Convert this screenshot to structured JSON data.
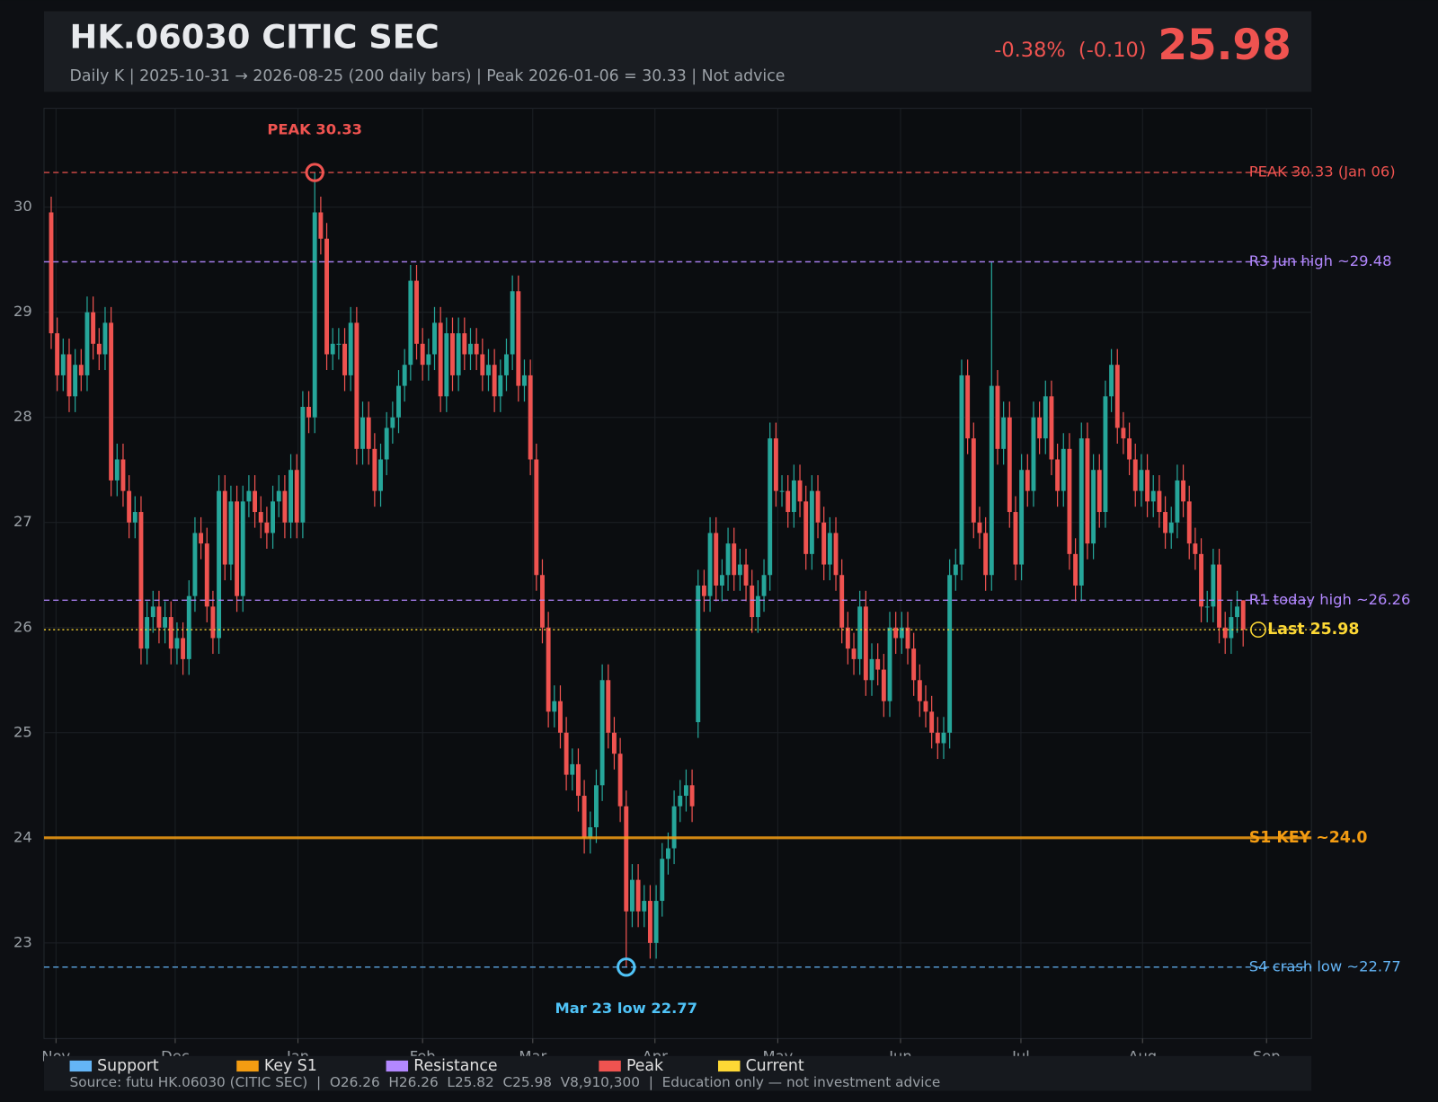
{
  "header": {
    "title": "HK.06030  CITIC SEC",
    "subtitle": "Daily K  |  2025-10-31 → 2026-08-25 (200 daily bars)  |  Peak 2026-01-06 = 30.33  |  Not advice",
    "change": "-0.38%  (-0.10)",
    "price": "25.98"
  },
  "footer": "Source: futu HK.06030 (CITIC SEC)  |  O26.26  H26.26  L25.82  C25.98  V8,910,300  |  Education only — not investment advice",
  "chart_data": {
    "type": "candlestick",
    "xlim": [
      -1.2,
      210.4
    ],
    "xticks": [
      {
        "value": 0.8,
        "label": "Nov"
      },
      {
        "value": 20.7,
        "label": "Dec"
      },
      {
        "value": 41.2,
        "label": "Jan"
      },
      {
        "value": 62,
        "label": "Feb"
      },
      {
        "value": 80.4,
        "label": "Mar"
      },
      {
        "value": 100.8,
        "label": "Apr"
      },
      {
        "value": 121.3,
        "label": "May"
      },
      {
        "value": 141.8,
        "label": "Jun"
      },
      {
        "value": 161.9,
        "label": "Jul"
      },
      {
        "value": 182.2,
        "label": "Aug"
      },
      {
        "value": 202.9,
        "label": "Sep"
      }
    ],
    "ylim": [
      22.09,
      30.94
    ],
    "yticks": [
      23,
      24,
      25,
      26,
      27,
      28,
      29,
      30
    ],
    "grid": true,
    "up_color": "#26a69a",
    "down_color": "#ef5350",
    "open": [
      29.95,
      28.8,
      28.4,
      28.6,
      28.2,
      28.5,
      28.4,
      29.0,
      28.7,
      28.6,
      28.9,
      27.4,
      27.6,
      27.3,
      27.0,
      27.1,
      25.8,
      26.1,
      26.2,
      26.0,
      26.1,
      25.8,
      25.9,
      25.7,
      26.3,
      26.9,
      26.8,
      26.2,
      25.9,
      27.3,
      26.6,
      27.2,
      26.3,
      27.2,
      27.3,
      27.1,
      27.0,
      26.9,
      27.2,
      27.3,
      27.0,
      27.5,
      27.0,
      28.1,
      28.0,
      29.95,
      29.7,
      28.6,
      28.7,
      28.7,
      28.4,
      28.9,
      27.7,
      28.0,
      27.7,
      27.3,
      27.6,
      27.9,
      28.0,
      28.3,
      28.5,
      29.3,
      28.7,
      28.5,
      28.6,
      28.9,
      28.2,
      28.8,
      28.4,
      28.8,
      28.6,
      28.7,
      28.6,
      28.4,
      28.5,
      28.2,
      28.4,
      28.6,
      29.2,
      28.3,
      28.4,
      27.6,
      26.5,
      26.0,
      25.2,
      25.3,
      25.0,
      24.6,
      24.7,
      24.4,
      24.0,
      24.1,
      24.5,
      25.5,
      25.0,
      24.8,
      24.3,
      23.3,
      23.6,
      23.3,
      23.4,
      23.0,
      23.4,
      23.8,
      23.9,
      24.3,
      24.4,
      24.5,
      25.1,
      26.4,
      26.3,
      26.9,
      26.4,
      26.5,
      26.8,
      26.5,
      26.6,
      26.4,
      26.1,
      26.3,
      26.5,
      27.8,
      27.3,
      27.3,
      27.1,
      27.4,
      27.2,
      26.7,
      27.3,
      27.0,
      26.6,
      26.9,
      26.5,
      26.0,
      25.8,
      25.7,
      26.2,
      25.5,
      25.7,
      25.6,
      25.3,
      26.0,
      25.9,
      26.0,
      25.8,
      25.5,
      25.3,
      25.2,
      25.0,
      24.9,
      25.0,
      26.5,
      26.6,
      28.4,
      27.8,
      27.0,
      26.9,
      26.5,
      28.3,
      27.7,
      28.0,
      27.1,
      26.6,
      27.5,
      27.3,
      28.0,
      27.8,
      28.2,
      27.6,
      27.3,
      27.7,
      26.7,
      26.4,
      27.8,
      26.8,
      27.5,
      27.1,
      28.2,
      28.5,
      27.9,
      27.8,
      27.6,
      27.3,
      27.5,
      27.2,
      27.3,
      27.1,
      26.9,
      27.0,
      27.4,
      27.2,
      26.8,
      26.7,
      26.2,
      26.2,
      26.6,
      26.0,
      25.9,
      26.1,
      26.26
    ],
    "high": [
      30.1,
      28.95,
      28.75,
      28.75,
      28.65,
      28.65,
      29.15,
      29.15,
      28.85,
      29.05,
      29.05,
      27.75,
      27.75,
      27.45,
      27.25,
      27.25,
      26.25,
      26.35,
      26.35,
      26.25,
      26.25,
      26.05,
      26.05,
      26.45,
      27.05,
      27.05,
      26.95,
      26.35,
      27.45,
      27.45,
      27.35,
      27.35,
      27.35,
      27.45,
      27.45,
      27.25,
      27.15,
      27.35,
      27.45,
      27.45,
      27.65,
      27.65,
      28.25,
      28.25,
      30.33,
      30.1,
      29.85,
      28.85,
      28.85,
      28.85,
      29.05,
      29.05,
      28.15,
      28.15,
      27.85,
      27.75,
      28.05,
      28.15,
      28.45,
      28.65,
      29.45,
      29.45,
      28.85,
      28.75,
      29.05,
      29.05,
      28.95,
      28.95,
      28.95,
      28.95,
      28.85,
      28.85,
      28.75,
      28.65,
      28.65,
      28.55,
      28.75,
      29.35,
      29.35,
      28.55,
      28.55,
      27.75,
      26.65,
      26.15,
      25.45,
      25.45,
      25.15,
      24.85,
      24.85,
      24.55,
      24.25,
      24.65,
      25.65,
      25.65,
      25.15,
      24.95,
      24.45,
      23.75,
      23.75,
      23.55,
      23.55,
      23.55,
      23.95,
      24.05,
      24.45,
      24.55,
      24.65,
      24.65,
      26.55,
      26.55,
      27.05,
      27.05,
      26.65,
      26.95,
      26.95,
      26.75,
      26.75,
      26.55,
      26.45,
      26.65,
      27.95,
      27.95,
      27.45,
      27.45,
      27.55,
      27.55,
      27.35,
      27.45,
      27.45,
      27.15,
      27.05,
      27.05,
      26.65,
      26.15,
      25.95,
      26.35,
      26.35,
      25.85,
      25.85,
      25.75,
      26.15,
      26.15,
      26.15,
      26.15,
      25.95,
      25.65,
      25.45,
      25.35,
      25.15,
      25.15,
      26.65,
      26.75,
      28.55,
      28.55,
      27.95,
      27.15,
      27.05,
      29.48,
      28.45,
      28.15,
      28.15,
      27.25,
      27.65,
      27.65,
      28.15,
      28.15,
      28.35,
      28.35,
      27.75,
      27.85,
      27.85,
      26.85,
      27.95,
      27.95,
      27.65,
      27.65,
      28.35,
      28.65,
      28.65,
      28.05,
      27.95,
      27.75,
      27.65,
      27.65,
      27.45,
      27.45,
      27.25,
      27.15,
      27.55,
      27.55,
      27.35,
      26.95,
      26.85,
      26.35,
      26.75,
      26.75,
      26.15,
      26.25,
      26.35,
      26.26
    ],
    "low": [
      28.65,
      28.25,
      28.25,
      28.05,
      28.05,
      28.25,
      28.25,
      28.55,
      28.45,
      28.45,
      27.25,
      27.25,
      27.15,
      26.85,
      26.85,
      25.65,
      25.65,
      25.95,
      25.85,
      25.85,
      25.65,
      25.65,
      25.55,
      25.55,
      26.15,
      26.65,
      26.05,
      25.75,
      25.75,
      26.45,
      26.45,
      26.15,
      26.15,
      27.05,
      26.95,
      26.85,
      26.75,
      26.75,
      27.05,
      26.85,
      26.85,
      26.85,
      26.85,
      27.85,
      27.85,
      29.55,
      28.45,
      28.45,
      28.55,
      28.25,
      28.25,
      27.55,
      27.55,
      27.55,
      27.15,
      27.15,
      27.45,
      27.75,
      27.85,
      28.15,
      28.35,
      28.55,
      28.35,
      28.35,
      28.45,
      28.05,
      28.05,
      28.25,
      28.25,
      28.45,
      28.45,
      28.45,
      28.25,
      28.25,
      28.05,
      28.05,
      28.25,
      28.45,
      28.15,
      28.15,
      27.45,
      26.35,
      25.85,
      25.05,
      25.05,
      24.85,
      24.45,
      24.45,
      24.25,
      23.85,
      23.85,
      23.95,
      24.35,
      24.85,
      24.65,
      24.15,
      22.77,
      23.15,
      23.15,
      23.15,
      22.85,
      22.85,
      23.25,
      23.65,
      23.75,
      24.15,
      24.25,
      24.15,
      24.95,
      26.15,
      26.15,
      26.25,
      26.25,
      26.35,
      26.35,
      26.35,
      26.25,
      25.95,
      25.95,
      26.15,
      26.35,
      27.15,
      27.15,
      26.95,
      26.95,
      27.05,
      26.55,
      26.55,
      26.85,
      26.45,
      26.45,
      26.35,
      25.85,
      25.65,
      25.55,
      25.55,
      25.35,
      25.35,
      25.45,
      25.15,
      25.15,
      25.75,
      25.75,
      25.65,
      25.35,
      25.15,
      25.05,
      24.85,
      24.75,
      24.75,
      24.85,
      26.35,
      26.45,
      27.65,
      26.85,
      26.75,
      26.35,
      26.35,
      27.55,
      27.55,
      26.95,
      26.45,
      26.45,
      27.15,
      27.15,
      27.65,
      27.65,
      27.45,
      27.15,
      27.15,
      26.55,
      26.25,
      26.25,
      26.65,
      26.65,
      26.95,
      26.95,
      28.05,
      27.75,
      27.65,
      27.45,
      27.15,
      27.15,
      27.05,
      27.05,
      26.95,
      26.75,
      26.75,
      26.85,
      27.05,
      26.65,
      26.55,
      26.05,
      26.05,
      26.05,
      25.85,
      25.75,
      25.75,
      25.95,
      25.82
    ],
    "close": [
      28.8,
      28.4,
      28.6,
      28.2,
      28.5,
      28.4,
      29.0,
      28.7,
      28.6,
      28.9,
      27.4,
      27.6,
      27.3,
      27.0,
      27.1,
      25.8,
      26.1,
      26.2,
      26.0,
      26.1,
      25.8,
      25.9,
      25.7,
      26.3,
      26.9,
      26.8,
      26.2,
      25.9,
      27.3,
      26.6,
      27.2,
      26.3,
      27.2,
      27.3,
      27.1,
      27.0,
      26.9,
      27.2,
      27.3,
      27.0,
      27.5,
      27.0,
      28.1,
      28.0,
      29.95,
      29.7,
      28.6,
      28.7,
      28.7,
      28.4,
      28.9,
      27.7,
      28.0,
      27.7,
      27.3,
      27.6,
      27.9,
      28.0,
      28.3,
      28.5,
      29.3,
      28.7,
      28.5,
      28.6,
      28.9,
      28.2,
      28.8,
      28.4,
      28.8,
      28.6,
      28.7,
      28.6,
      28.4,
      28.5,
      28.2,
      28.4,
      28.6,
      29.2,
      28.3,
      28.4,
      27.6,
      26.5,
      26.0,
      25.2,
      25.3,
      25.0,
      24.6,
      24.7,
      24.4,
      24.0,
      24.1,
      24.5,
      25.5,
      25.0,
      24.8,
      24.3,
      23.3,
      23.6,
      23.3,
      23.4,
      23.0,
      23.4,
      23.8,
      23.9,
      24.3,
      24.4,
      24.5,
      24.3,
      26.4,
      26.3,
      26.9,
      26.4,
      26.5,
      26.8,
      26.5,
      26.6,
      26.4,
      26.1,
      26.3,
      26.5,
      27.8,
      27.3,
      27.3,
      27.1,
      27.4,
      27.2,
      26.7,
      27.3,
      27.0,
      26.6,
      26.9,
      26.5,
      26.0,
      25.8,
      25.7,
      26.2,
      25.5,
      25.7,
      25.6,
      25.3,
      26.0,
      25.9,
      26.0,
      25.8,
      25.5,
      25.3,
      25.2,
      25.0,
      24.9,
      25.0,
      26.5,
      26.6,
      28.4,
      27.8,
      27.0,
      26.9,
      26.5,
      28.3,
      27.7,
      28.0,
      27.1,
      26.6,
      27.5,
      27.3,
      28.0,
      27.8,
      28.2,
      27.6,
      27.3,
      27.7,
      26.7,
      26.4,
      27.8,
      26.8,
      27.5,
      27.1,
      28.2,
      28.5,
      27.9,
      27.8,
      27.6,
      27.3,
      27.5,
      27.2,
      27.3,
      27.1,
      26.9,
      27.0,
      27.4,
      27.2,
      26.8,
      26.7,
      26.2,
      26.2,
      26.6,
      26.0,
      25.9,
      26.1,
      26.2,
      25.98
    ],
    "levels": [
      {
        "value": 30.33,
        "label": "PEAK 30.33 (Jan 06)",
        "color": "#ef5350",
        "style": "dashed"
      },
      {
        "value": 29.48,
        "label": "R3 Jun high ~29.48",
        "color": "#b388ff",
        "style": "dashed"
      },
      {
        "value": 26.26,
        "label": "R1 today high ~26.26",
        "color": "#b388ff",
        "style": "dashed"
      },
      {
        "value": 25.98,
        "label": "Last 25.98",
        "color": "#fdd835",
        "style": "dotted",
        "bold": true,
        "marker": true
      },
      {
        "value": 24.0,
        "label": "S1 KEY ~24.0",
        "color": "#f39c12",
        "style": "solid",
        "bold": true
      },
      {
        "value": 22.77,
        "label": "S4 crash low ~22.77",
        "color": "#64b5f6",
        "style": "dashed"
      }
    ],
    "annotations": [
      {
        "text": "PEAK 30.33",
        "index": 44,
        "value": 30.33,
        "color": "#ef5350",
        "placement": "above"
      },
      {
        "text": "Mar 23 low 22.77",
        "index": 96,
        "value": 22.77,
        "color": "#4fc3f7",
        "placement": "below"
      }
    ],
    "legend": [
      {
        "name": "Support",
        "color": "#64b5f6"
      },
      {
        "name": "Key S1",
        "color": "#f39c12"
      },
      {
        "name": "Resistance",
        "color": "#b388ff"
      },
      {
        "name": "Peak",
        "color": "#ef5350"
      },
      {
        "name": "Current",
        "color": "#fdd835"
      }
    ]
  }
}
